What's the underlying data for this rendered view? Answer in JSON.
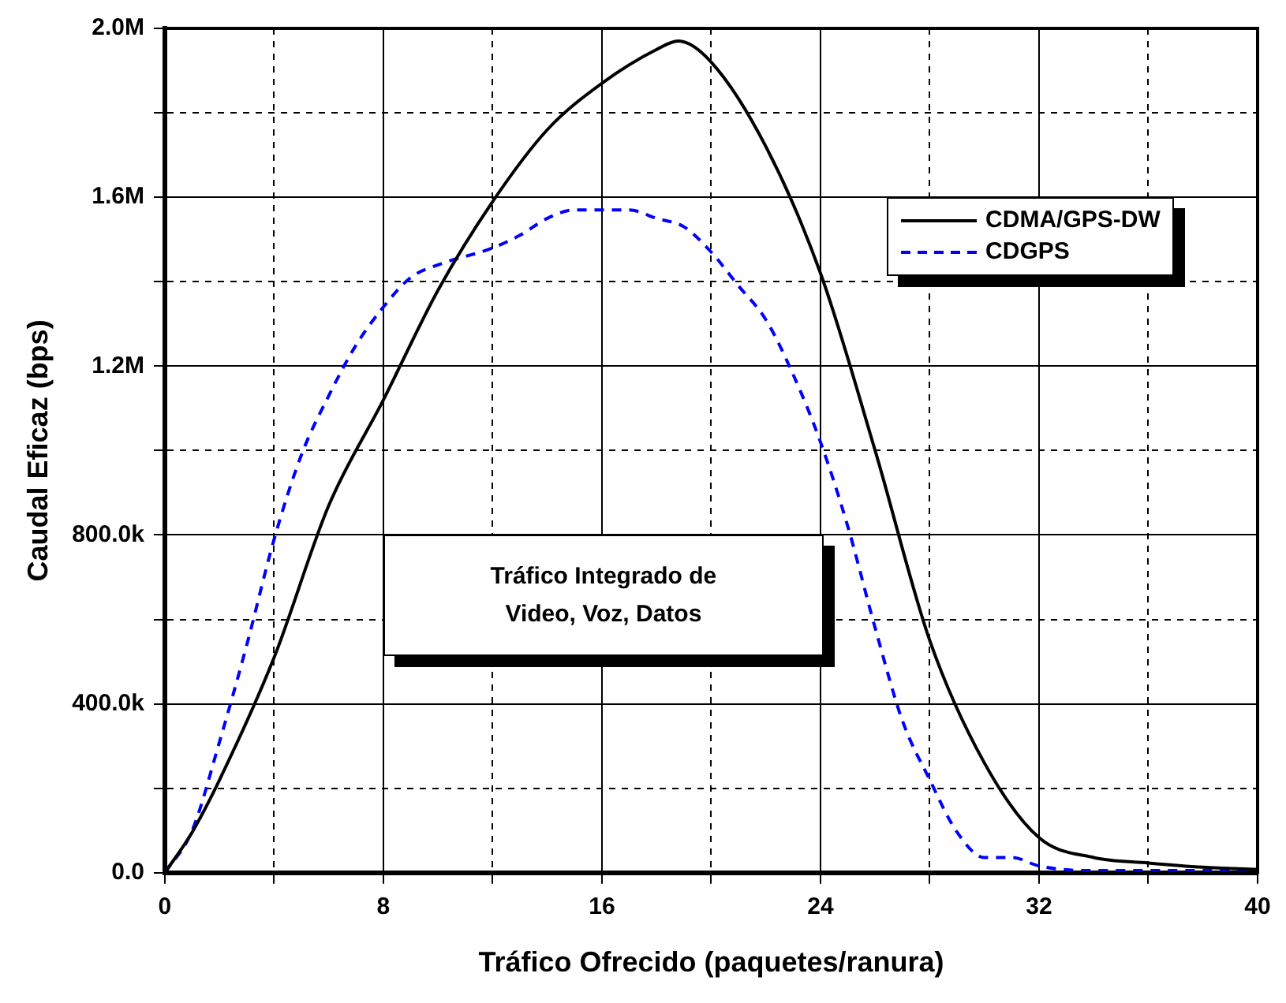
{
  "chart_data": {
    "type": "line",
    "xlabel": "Tráfico Ofrecido (paquetes/ranura)",
    "ylabel": "Caudal Eficaz (bps)",
    "xlim": [
      0,
      40
    ],
    "xticks": [
      0,
      {
        "value": 4,
        "label": null
      },
      8,
      {
        "value": 12,
        "label": null
      },
      16,
      {
        "value": 20,
        "label": null
      },
      24,
      {
        "value": 28,
        "label": null
      },
      32,
      {
        "value": 36,
        "label": null
      },
      40
    ],
    "ylim": [
      0,
      2000000
    ],
    "yticks": [
      {
        "value": 0,
        "label": "0.0"
      },
      {
        "value": 200000,
        "label": null
      },
      {
        "value": 400000,
        "label": "400.0k"
      },
      {
        "value": 600000,
        "label": null
      },
      {
        "value": 800000,
        "label": "800.0k"
      },
      {
        "value": 1000000,
        "label": null
      },
      {
        "value": 1200000,
        "label": "1.2M"
      },
      {
        "value": 1400000,
        "label": null
      },
      {
        "value": 1600000,
        "label": "1.6M"
      },
      {
        "value": 1800000,
        "label": null
      },
      {
        "value": 2000000,
        "label": "2.0M"
      }
    ],
    "grid": true,
    "legend": "top right",
    "marker": "none",
    "annotations": [
      "Tráfico Integrado de\nVideo, Voz, Datos"
    ],
    "series": [
      {
        "name": "CDMA/GPS-DW",
        "color": "#000000",
        "line_style": "solid",
        "x": [
          0,
          1,
          2,
          4,
          6,
          8,
          10,
          12,
          14,
          16,
          18,
          18.8,
          20,
          22,
          24,
          26,
          28,
          30,
          32,
          34,
          36,
          38,
          40
        ],
        "values": [
          0,
          96000,
          220000,
          510000,
          870000,
          1120000,
          1380000,
          1590000,
          1760000,
          1870000,
          1950000,
          1970000,
          1920000,
          1720000,
          1420000,
          1000000,
          550000,
          260000,
          83000,
          36000,
          23000,
          13000,
          8000
        ]
      },
      {
        "name": "CDGPS",
        "color": "#0000ff",
        "line_style": "dashed",
        "x": [
          0,
          1,
          2,
          3,
          4,
          5,
          6,
          7,
          8,
          9,
          10,
          12,
          13,
          14,
          15,
          16,
          17,
          18,
          19,
          20,
          21,
          22,
          23,
          24,
          25,
          26,
          27,
          28,
          29,
          30,
          31,
          32,
          33,
          34,
          36,
          38,
          40
        ],
        "values": [
          0,
          100000,
          310000,
          540000,
          790000,
          990000,
          1130000,
          1250000,
          1340000,
          1410000,
          1440000,
          1480000,
          1510000,
          1550000,
          1570000,
          1570000,
          1570000,
          1550000,
          1530000,
          1470000,
          1390000,
          1310000,
          1180000,
          1020000,
          820000,
          580000,
          360000,
          220000,
          96000,
          36000,
          36000,
          16000,
          7000,
          5000,
          5000,
          5000,
          5000
        ]
      }
    ]
  }
}
